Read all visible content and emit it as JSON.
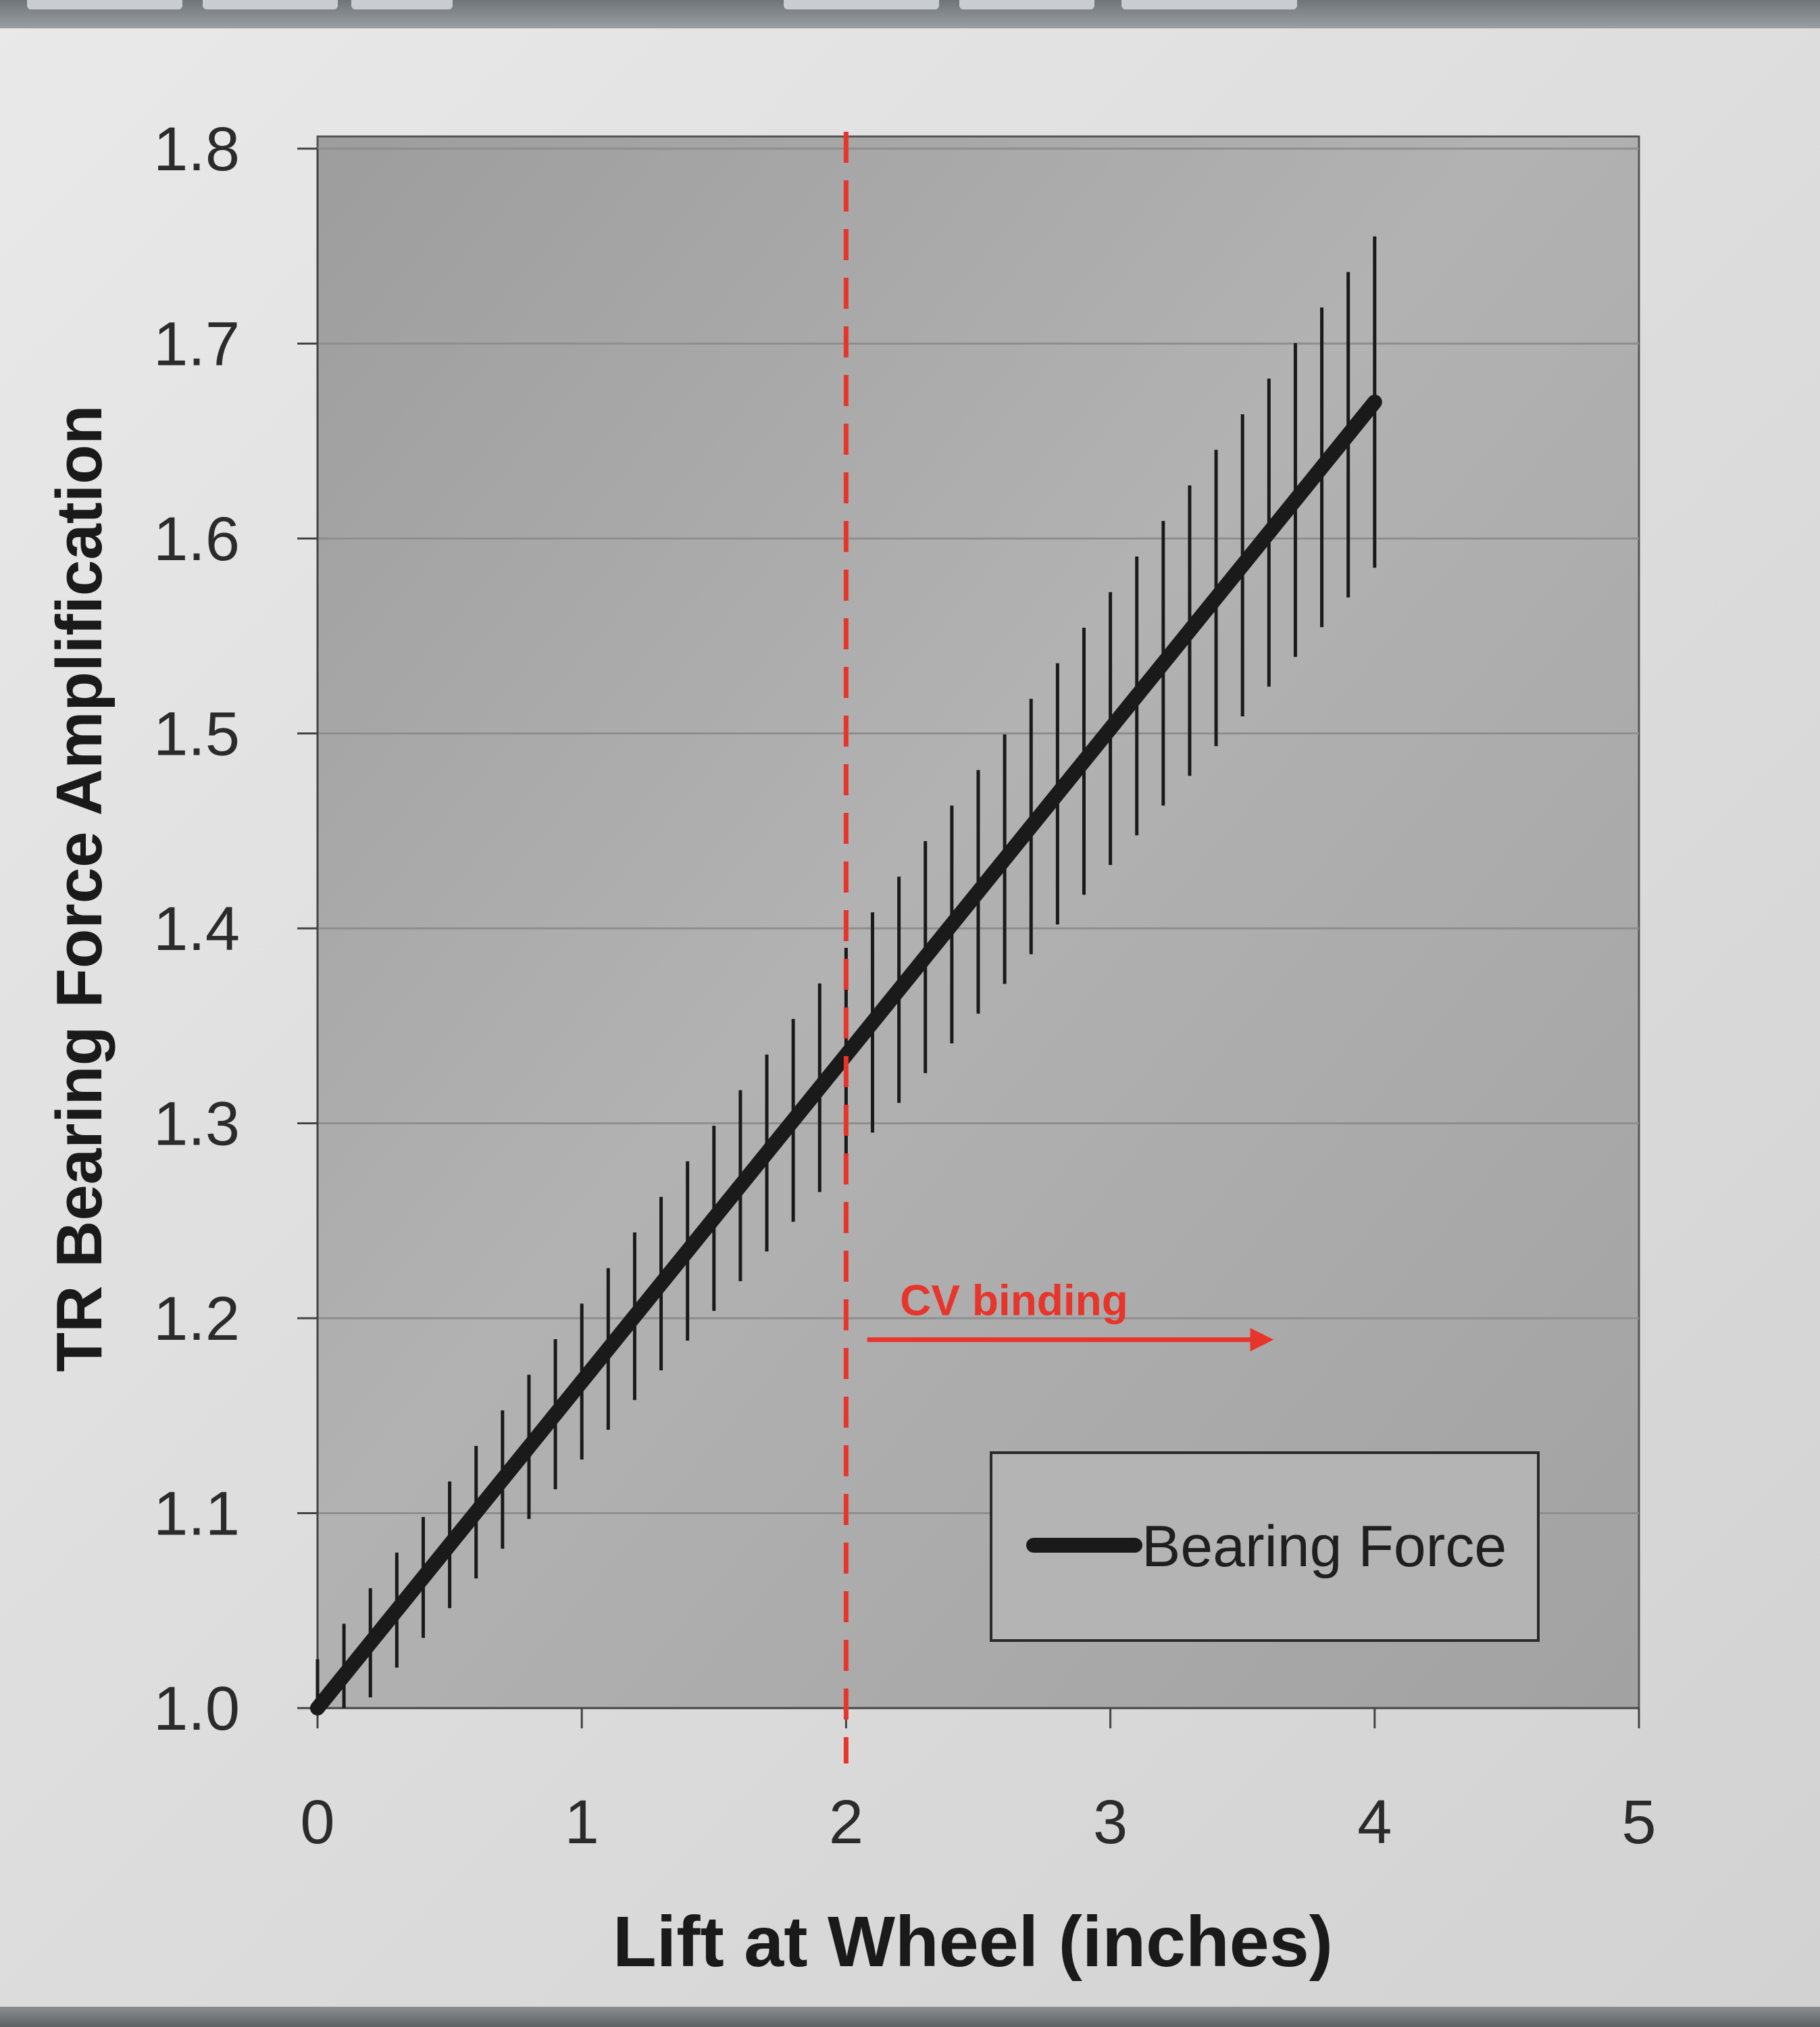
{
  "chart_data": {
    "type": "line",
    "xlabel": "Lift at Wheel (inches)",
    "ylabel": "TR Bearing Force Amplification",
    "xlim": [
      0,
      5
    ],
    "ylim": [
      1.0,
      1.8
    ],
    "x_ticks": [
      "0",
      "1",
      "2",
      "3",
      "4",
      "5"
    ],
    "y_ticks": [
      "1.0",
      "1.1",
      "1.2",
      "1.3",
      "1.4",
      "1.5",
      "1.6",
      "1.7",
      "1.8"
    ],
    "grid": "horizontal",
    "legend": "bottom-right",
    "series": [
      {
        "name": "Bearing Force",
        "color": "#1a1a1a",
        "x": [
          0,
          4
        ],
        "y": [
          1.0,
          1.67
        ],
        "error_bars": {
          "x_step": 0.1,
          "x_start": 0,
          "x_end": 4,
          "half_width_start": 0.025,
          "half_width_end": 0.085
        }
      }
    ],
    "annotations": [
      {
        "type": "vline",
        "x": 2,
        "color": "#e8352b",
        "style": "dashed"
      },
      {
        "type": "arrow",
        "text": "CV binding",
        "x_from": 2.08,
        "x_to": 3.6,
        "y": 1.189,
        "color": "#e8352b"
      }
    ]
  },
  "colors": {
    "plot_background": "#a9a9a9",
    "gridline": "#8e8e8e",
    "annotation": "#e8352b",
    "legend_background": "#b4b4b4"
  }
}
